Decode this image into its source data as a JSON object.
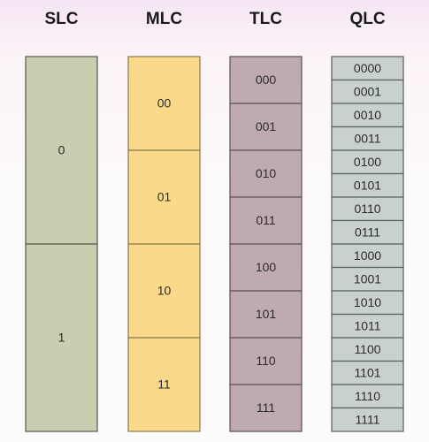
{
  "columns": [
    {
      "title": "SLC",
      "cells": [
        "0",
        "1"
      ]
    },
    {
      "title": "MLC",
      "cells": [
        "00",
        "01",
        "10",
        "11"
      ]
    },
    {
      "title": "TLC",
      "cells": [
        "000",
        "001",
        "010",
        "011",
        "100",
        "101",
        "110",
        "111"
      ]
    },
    {
      "title": "QLC",
      "cells": [
        "0000",
        "0001",
        "0010",
        "0011",
        "0100",
        "0101",
        "0110",
        "0111",
        "1000",
        "1001",
        "1010",
        "1011",
        "1100",
        "1101",
        "1110",
        "1111"
      ]
    }
  ]
}
